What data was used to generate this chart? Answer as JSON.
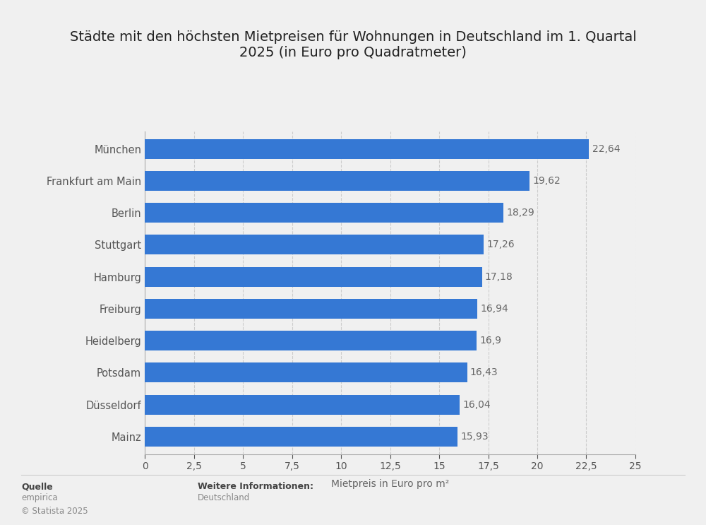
{
  "title": "Städte mit den höchsten Mietpreisen für Wohnungen in Deutschland im 1. Quartal\n2025 (in Euro pro Quadratmeter)",
  "categories": [
    "Mainz",
    "Düsseldorf",
    "Potsdam",
    "Heidelberg",
    "Freiburg",
    "Hamburg",
    "Stuttgart",
    "Berlin",
    "Frankfurt am Main",
    "München"
  ],
  "values": [
    15.93,
    16.04,
    16.43,
    16.9,
    16.94,
    17.18,
    17.26,
    18.29,
    19.62,
    22.64
  ],
  "labels": [
    "15,93",
    "16,04",
    "16,43",
    "16,9",
    "16,94",
    "17,18",
    "17,26",
    "18,29",
    "19,62",
    "22,64"
  ],
  "bar_color": "#3578d4",
  "background_color": "#f0f0f0",
  "xlabel": "Mietpreis in Euro pro m²",
  "xlim": [
    0,
    25
  ],
  "xticks": [
    0,
    2.5,
    5,
    7.5,
    10,
    12.5,
    15,
    17.5,
    20,
    22.5,
    25
  ],
  "xtick_labels": [
    "0",
    "2,5",
    "5",
    "7,5",
    "10",
    "12,5",
    "15",
    "17,5",
    "20",
    "22,5",
    "25"
  ],
  "title_fontsize": 14,
  "label_fontsize": 10.5,
  "tick_fontsize": 10,
  "value_label_fontsize": 10,
  "source_bold": "Quelle",
  "source_normal": "empirica\n© Statista 2025",
  "info_bold": "Weitere Informationen:",
  "info_normal": "Deutschland"
}
